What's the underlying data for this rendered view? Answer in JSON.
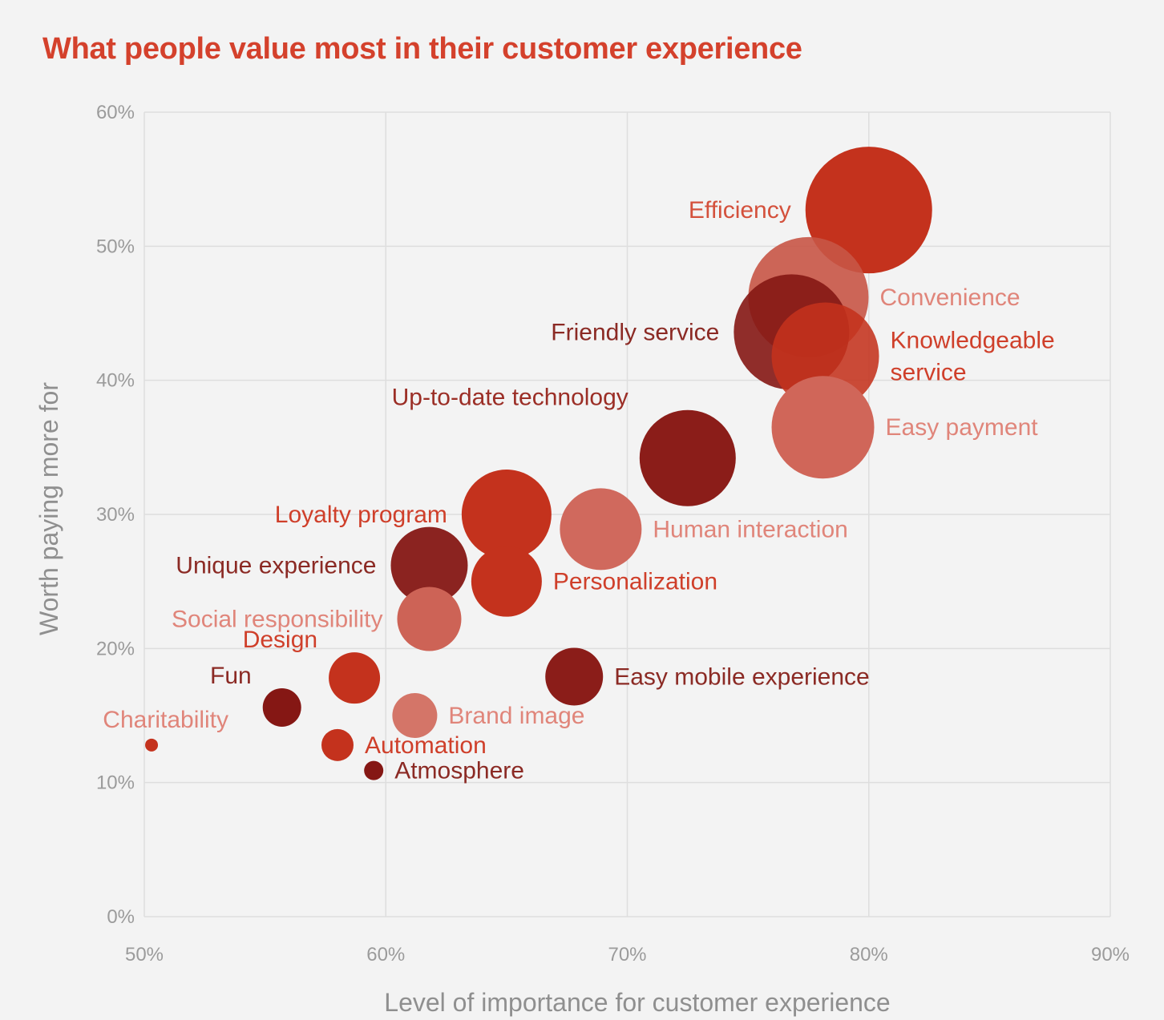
{
  "chart_data": {
    "type": "scatter",
    "title": "What people value most in their customer experience",
    "xlabel": "Level of importance for customer experience",
    "ylabel": "Worth paying more for",
    "xlim": [
      50,
      90
    ],
    "ylim": [
      0,
      60
    ],
    "x_ticks": [
      "50%",
      "60%",
      "70%",
      "80%",
      "90%"
    ],
    "y_ticks": [
      "0%",
      "10%",
      "20%",
      "30%",
      "40%",
      "50%",
      "60%"
    ],
    "grid": true,
    "series": [
      {
        "name": "Efficiency",
        "x": 80.0,
        "y": 52.7,
        "size": 79,
        "color": "#c4321d",
        "opacity": 1.0
      },
      {
        "name": "Convenience",
        "x": 77.5,
        "y": 46.2,
        "size": 75,
        "color": "#c85546",
        "opacity": 0.9
      },
      {
        "name": "Friendly service",
        "x": 76.8,
        "y": 43.6,
        "size": 72,
        "color": "#851714",
        "opacity": 0.9
      },
      {
        "name": "Knowledgeable service",
        "x": 78.2,
        "y": 41.8,
        "size": 67,
        "color": "#c4321d",
        "opacity": 0.88
      },
      {
        "name": "Easy payment",
        "x": 78.1,
        "y": 36.5,
        "size": 64,
        "color": "#d06659",
        "opacity": 1.0
      },
      {
        "name": "Up-to-date technology",
        "x": 72.5,
        "y": 34.2,
        "size": 60,
        "color": "#8b1d19",
        "opacity": 1.0
      },
      {
        "name": "Human interaction",
        "x": 68.9,
        "y": 28.9,
        "size": 51,
        "color": "#d0695d",
        "opacity": 1.0
      },
      {
        "name": "Loyalty program",
        "x": 65.0,
        "y": 30.0,
        "size": 56,
        "color": "#c4321d",
        "opacity": 1.0
      },
      {
        "name": "Personalization",
        "x": 65.0,
        "y": 25.0,
        "size": 44,
        "color": "#c4321d",
        "opacity": 1.0
      },
      {
        "name": "Unique experience",
        "x": 61.8,
        "y": 26.2,
        "size": 48,
        "color": "#851714",
        "opacity": 0.95
      },
      {
        "name": "Social responsibility",
        "x": 61.8,
        "y": 22.2,
        "size": 40,
        "color": "#cd6356",
        "opacity": 1.0
      },
      {
        "name": "Easy mobile experience",
        "x": 67.8,
        "y": 17.9,
        "size": 36,
        "color": "#8b1d19",
        "opacity": 1.0
      },
      {
        "name": "Design",
        "x": 58.7,
        "y": 17.8,
        "size": 32,
        "color": "#c4321d",
        "opacity": 1.0
      },
      {
        "name": "Brand image",
        "x": 61.2,
        "y": 15.0,
        "size": 28,
        "color": "#d47568",
        "opacity": 1.0
      },
      {
        "name": "Fun",
        "x": 55.7,
        "y": 15.6,
        "size": 24,
        "color": "#851714",
        "opacity": 1.0
      },
      {
        "name": "Automation",
        "x": 58.0,
        "y": 12.8,
        "size": 20,
        "color": "#c4321d",
        "opacity": 1.0
      },
      {
        "name": "Atmosphere",
        "x": 59.5,
        "y": 10.9,
        "size": 12,
        "color": "#851714",
        "opacity": 1.0
      },
      {
        "name": "Charitability",
        "x": 50.3,
        "y": 12.8,
        "size": 8,
        "color": "#c4321d",
        "opacity": 1.0
      }
    ],
    "labels": [
      {
        "name": "Efficiency",
        "lines": [
          "Efficiency"
        ],
        "color": "#d4513c",
        "position": "left"
      },
      {
        "name": "Convenience",
        "lines": [
          "Convenience"
        ],
        "color": "#e0857a",
        "position": "right"
      },
      {
        "name": "Friendly service",
        "lines": [
          "Friendly service"
        ],
        "color": "#8b2a24",
        "position": "left"
      },
      {
        "name": "Knowledgeable service",
        "lines": [
          "Knowledgeable",
          "service"
        ],
        "color": "#cf3f2a",
        "position": "right"
      },
      {
        "name": "Easy payment",
        "lines": [
          "Easy payment"
        ],
        "color": "#e0857a",
        "position": "right"
      },
      {
        "name": "Up-to-date technology",
        "lines": [
          "Up-to-date technology"
        ],
        "color": "#9b2e26",
        "position": "upper-left"
      },
      {
        "name": "Human interaction",
        "lines": [
          "Human interaction"
        ],
        "color": "#e0857a",
        "position": "right"
      },
      {
        "name": "Loyalty program",
        "lines": [
          "Loyalty program"
        ],
        "color": "#cf3f2a",
        "position": "left"
      },
      {
        "name": "Personalization",
        "lines": [
          "Personalization"
        ],
        "color": "#cf3f2a",
        "position": "right"
      },
      {
        "name": "Unique experience",
        "lines": [
          "Unique experience"
        ],
        "color": "#8b2a24",
        "position": "left"
      },
      {
        "name": "Social responsibility",
        "lines": [
          "Social responsibility"
        ],
        "color": "#e0857a",
        "position": "left"
      },
      {
        "name": "Easy mobile experience",
        "lines": [
          "Easy mobile experience"
        ],
        "color": "#8b2a24",
        "position": "right"
      },
      {
        "name": "Design",
        "lines": [
          "Design"
        ],
        "color": "#cf3f2a",
        "position": "upper-left"
      },
      {
        "name": "Brand image",
        "lines": [
          "Brand image"
        ],
        "color": "#e0857a",
        "position": "right"
      },
      {
        "name": "Fun",
        "lines": [
          "Fun"
        ],
        "color": "#8b2a24",
        "position": "upper-left"
      },
      {
        "name": "Automation",
        "lines": [
          "Automation"
        ],
        "color": "#cf3f2a",
        "position": "right"
      },
      {
        "name": "Atmosphere",
        "lines": [
          "Atmosphere"
        ],
        "color": "#8b2a24",
        "position": "right"
      },
      {
        "name": "Charitability",
        "lines": [
          "Charitability"
        ],
        "color": "#e0857a",
        "position": "upper-right"
      }
    ]
  }
}
